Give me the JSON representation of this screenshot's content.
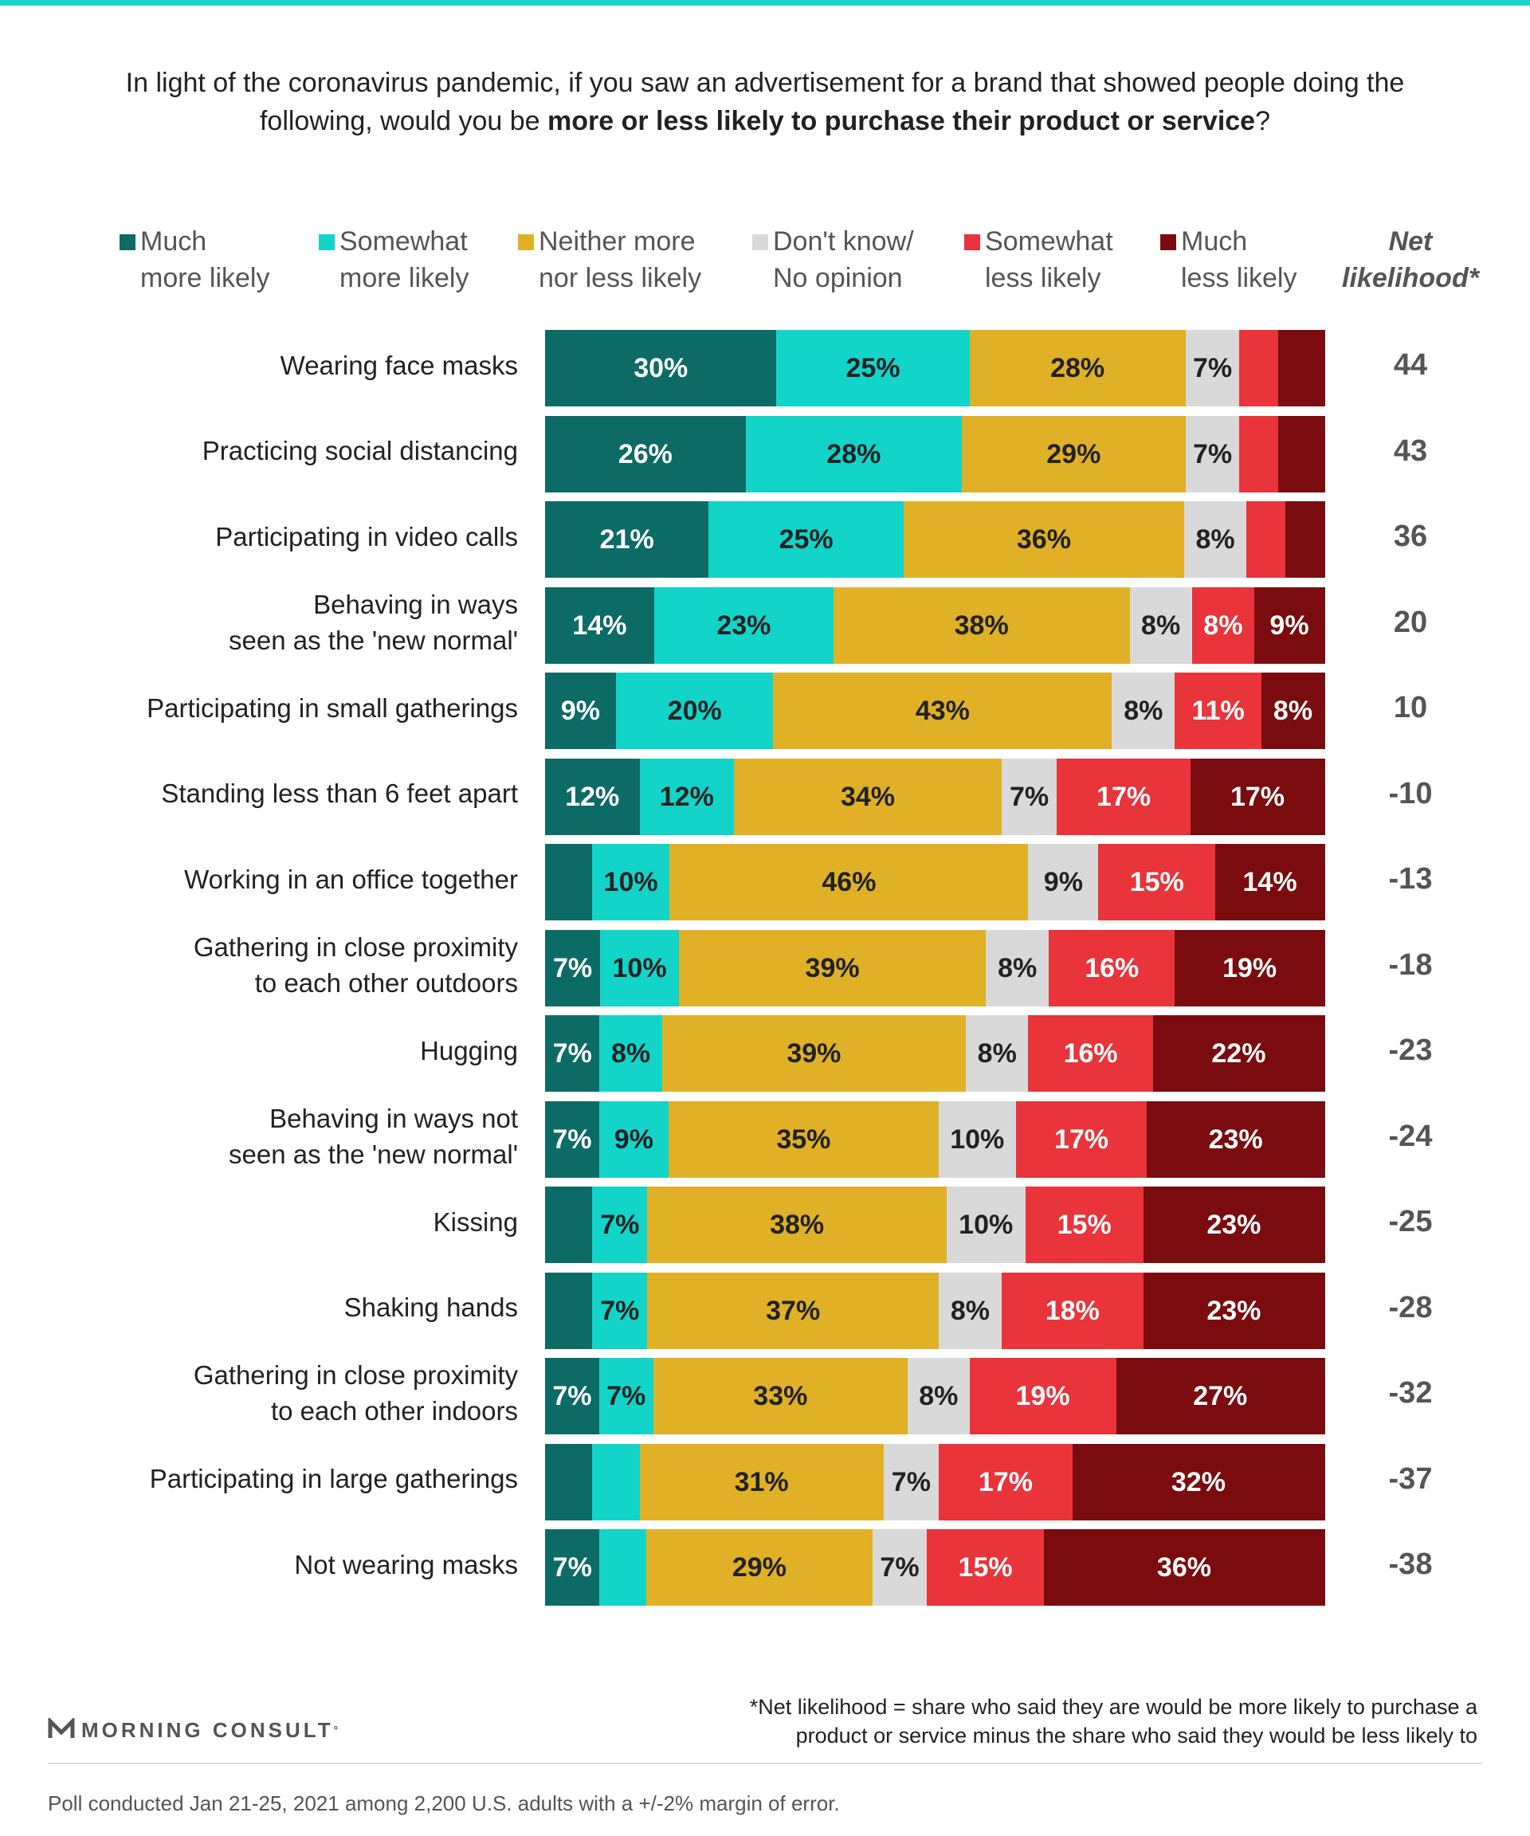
{
  "colors": {
    "top_rule": "#19d3c5",
    "much_more": "#0d6b66",
    "somewhat_more": "#12d4c9",
    "neither": "#e0b126",
    "dont_know": "#d9d9d9",
    "somewhat_less": "#e8343a",
    "much_less": "#7a0c10",
    "label_dark": "#222222",
    "label_light": "#ffffff"
  },
  "question": {
    "part1": "In light of the coronavirus pandemic, if you saw an advertisement for a brand that showed people doing the following, would you be ",
    "bold": "more or less likely to purchase their product or service",
    "part2": "?"
  },
  "legend": [
    {
      "line1": "Much",
      "line2": "more likely"
    },
    {
      "line1": "Somewhat",
      "line2": "more likely"
    },
    {
      "line1": "Neither more",
      "line2": "nor less likely"
    },
    {
      "line1": "Don't know/",
      "line2": "No opinion"
    },
    {
      "line1": "Somewhat",
      "line2": "less likely"
    },
    {
      "line1": "Much",
      "line2": "less likely"
    }
  ],
  "net_header": {
    "line1": "Net",
    "line2": "likelihood*"
  },
  "chart_data": {
    "type": "bar",
    "orientation": "horizontal",
    "stacked": true,
    "series_names": [
      "Much more likely",
      "Somewhat more likely",
      "Neither more nor less likely",
      "Don't know/ No opinion",
      "Somewhat less likely",
      "Much less likely"
    ],
    "rows": [
      {
        "label": [
          "Wearing face masks"
        ],
        "values": [
          30,
          25,
          28,
          7,
          5,
          6
        ],
        "shown": [
          true,
          true,
          true,
          true,
          false,
          false
        ],
        "net": "44"
      },
      {
        "label": [
          "Practicing social distancing"
        ],
        "values": [
          26,
          28,
          29,
          7,
          5,
          6
        ],
        "shown": [
          true,
          true,
          true,
          true,
          false,
          false
        ],
        "net": "43"
      },
      {
        "label": [
          "Participating in video calls"
        ],
        "values": [
          21,
          25,
          36,
          8,
          5,
          5
        ],
        "shown": [
          true,
          true,
          true,
          true,
          false,
          false
        ],
        "net": "36"
      },
      {
        "label": [
          "Behaving in ways",
          "seen as the 'new normal'"
        ],
        "values": [
          14,
          23,
          38,
          8,
          8,
          9
        ],
        "shown": [
          true,
          true,
          true,
          true,
          true,
          true
        ],
        "net": "20"
      },
      {
        "label": [
          "Participating in small gatherings"
        ],
        "values": [
          9,
          20,
          43,
          8,
          11,
          8
        ],
        "shown": [
          true,
          true,
          true,
          true,
          true,
          true
        ],
        "net": "10"
      },
      {
        "label": [
          "Standing less than 6 feet apart"
        ],
        "values": [
          12,
          12,
          34,
          7,
          17,
          17
        ],
        "shown": [
          true,
          true,
          true,
          true,
          true,
          true
        ],
        "net": "-10"
      },
      {
        "label": [
          "Working in an office together"
        ],
        "values": [
          6,
          10,
          46,
          9,
          15,
          14
        ],
        "shown": [
          false,
          true,
          true,
          true,
          true,
          true
        ],
        "net": "-13"
      },
      {
        "label": [
          "Gathering in close proximity",
          "to each other outdoors"
        ],
        "values": [
          7,
          10,
          39,
          8,
          16,
          19
        ],
        "shown": [
          true,
          true,
          true,
          true,
          true,
          true
        ],
        "net": "-18"
      },
      {
        "label": [
          "Hugging"
        ],
        "values": [
          7,
          8,
          39,
          8,
          16,
          22
        ],
        "shown": [
          true,
          true,
          true,
          true,
          true,
          true
        ],
        "net": "-23"
      },
      {
        "label": [
          "Behaving in ways not",
          "seen as the 'new normal'"
        ],
        "values": [
          7,
          9,
          35,
          10,
          17,
          23
        ],
        "shown": [
          true,
          true,
          true,
          true,
          true,
          true
        ],
        "net": "-24"
      },
      {
        "label": [
          "Kissing"
        ],
        "values": [
          6,
          7,
          38,
          10,
          15,
          23
        ],
        "shown": [
          false,
          true,
          true,
          true,
          true,
          true
        ],
        "net": "-25"
      },
      {
        "label": [
          "Shaking hands"
        ],
        "values": [
          6,
          7,
          37,
          8,
          18,
          23
        ],
        "shown": [
          false,
          true,
          true,
          true,
          true,
          true
        ],
        "net": "-28"
      },
      {
        "label": [
          "Gathering in close proximity",
          "to each other indoors"
        ],
        "values": [
          7,
          7,
          33,
          8,
          19,
          27
        ],
        "shown": [
          true,
          true,
          true,
          true,
          true,
          true
        ],
        "net": "-32"
      },
      {
        "label": [
          "Participating in large gatherings"
        ],
        "values": [
          6,
          6,
          31,
          7,
          17,
          32
        ],
        "shown": [
          false,
          false,
          true,
          true,
          true,
          true
        ],
        "net": "-37"
      },
      {
        "label": [
          "Not wearing masks"
        ],
        "values": [
          7,
          6,
          29,
          7,
          15,
          36
        ],
        "shown": [
          true,
          false,
          true,
          true,
          true,
          true
        ],
        "net": "-38"
      }
    ]
  },
  "footnote": {
    "line1": "*Net likelihood = share who said they are would be more likely to purchase a",
    "line2": "product or service minus the share who said they would be less likely to"
  },
  "logo": {
    "text": "MORNING CONSULT",
    "mark": "°"
  },
  "source": "Poll conducted Jan 21-25, 2021 among 2,200 U.S. adults with a +/-2% margin of error."
}
